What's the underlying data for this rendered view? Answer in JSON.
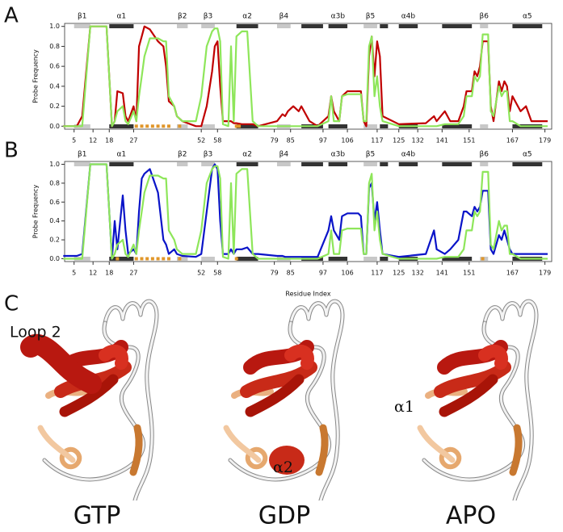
{
  "panel_labels": [
    "A",
    "B",
    "C"
  ],
  "structures": {
    "names": [
      "GTP",
      "GDP",
      "APO"
    ],
    "annotations": [
      "Loop 2",
      "α2",
      "α1"
    ]
  },
  "chart_data": [
    {
      "type": "line",
      "panel": "A",
      "ylabel": "Probe Frequency",
      "x": [
        1,
        6,
        8,
        11,
        17,
        19,
        20,
        21,
        23,
        24,
        25,
        27,
        28,
        29,
        30,
        31,
        33,
        36,
        38,
        39,
        40,
        42,
        43,
        45,
        50,
        52,
        54,
        56,
        57,
        58,
        59,
        60,
        62,
        63,
        64,
        65,
        67,
        69,
        71,
        73,
        80,
        82,
        83,
        84,
        86,
        88,
        89,
        92,
        95,
        99,
        100,
        101,
        103,
        104,
        106,
        110,
        111,
        112,
        113,
        114,
        115,
        116,
        117,
        118,
        119,
        125,
        135,
        138,
        139,
        142,
        144,
        147,
        149,
        150,
        152,
        153,
        154,
        155,
        156,
        158,
        159,
        160,
        162,
        163,
        164,
        165,
        166,
        167,
        170,
        172,
        174,
        180
      ],
      "series": [
        {
          "color": "#c00000",
          "values": [
            0,
            0,
            0.1,
            1.0,
            1.0,
            0,
            0.05,
            0.35,
            0.33,
            0.1,
            0.05,
            0.2,
            0.05,
            0.8,
            0.9,
            1.0,
            0.97,
            0.85,
            0.8,
            0.6,
            0.25,
            0.2,
            0.1,
            0.05,
            0,
            0,
            0.2,
            0.55,
            0.8,
            0.85,
            0.4,
            0.05,
            0.05,
            0.05,
            0.03,
            0.03,
            0.02,
            0.02,
            0.02,
            0,
            0.05,
            0.12,
            0.1,
            0.15,
            0.2,
            0.15,
            0.2,
            0.05,
            0,
            0.1,
            0.3,
            0.15,
            0.05,
            0.3,
            0.35,
            0.35,
            0.35,
            0.05,
            0,
            0.7,
            0.9,
            0.5,
            0.85,
            0.7,
            0.1,
            0.02,
            0.03,
            0.1,
            0.05,
            0.15,
            0.05,
            0.05,
            0.2,
            0.35,
            0.35,
            0.55,
            0.5,
            0.6,
            0.85,
            0.85,
            0.2,
            0.05,
            0.45,
            0.35,
            0.45,
            0.4,
            0.15,
            0.3,
            0.15,
            0.2,
            0.05,
            0.05
          ]
        },
        {
          "color": "#8ee65a",
          "values": [
            0,
            0,
            0,
            1.0,
            1.0,
            0,
            0.05,
            0.15,
            0.2,
            0.05,
            0.02,
            0.15,
            0.05,
            0.3,
            0.5,
            0.7,
            0.88,
            0.88,
            0.85,
            0.85,
            0.3,
            0.2,
            0.1,
            0.05,
            0.05,
            0.3,
            0.8,
            0.95,
            0.98,
            0.98,
            0.85,
            0.02,
            0,
            0.8,
            0.05,
            0.9,
            0.95,
            0.95,
            0.05,
            0,
            0,
            0,
            0,
            0,
            0,
            0,
            0,
            0,
            0,
            0.05,
            0.3,
            0.05,
            0.05,
            0.3,
            0.32,
            0.32,
            0.32,
            0.05,
            0.05,
            0.8,
            0.9,
            0.3,
            0.5,
            0.2,
            0.05,
            0,
            0,
            0,
            0,
            0.02,
            0.02,
            0.02,
            0.1,
            0.3,
            0.3,
            0.5,
            0.45,
            0.5,
            0.92,
            0.92,
            0.15,
            0.1,
            0.4,
            0.3,
            0.35,
            0.35,
            0.05,
            0.05,
            0,
            0,
            0,
            0
          ]
        }
      ],
      "markers": {
        "color": "#e0962a",
        "x": [
          28,
          30,
          32,
          34,
          36,
          38,
          40,
          44,
          65,
          66
        ],
        "values": [
          0,
          0,
          0,
          0,
          0,
          0,
          0,
          0,
          0,
          0
        ]
      },
      "xlim": [
        1.5,
        181.5
      ],
      "xticks": [
        5,
        12,
        18,
        27,
        52,
        58,
        79,
        85,
        97,
        106,
        117,
        125,
        132,
        141,
        151,
        167,
        179
      ],
      "ylim": [
        -0.03,
        1.03
      ],
      "yticks": [
        {
          "value": 0,
          "label": "0.0"
        },
        0.2,
        0.4,
        0.6,
        0.8,
        {
          "value": 1,
          "label": "1.0"
        }
      ],
      "secondary_structure": [
        {
          "label": "β1",
          "start": 5,
          "end": 11,
          "kind": "strand"
        },
        {
          "label": "α1",
          "start": 18,
          "end": 27,
          "kind": "helix"
        },
        {
          "label": "β2",
          "start": 43,
          "end": 47,
          "kind": "strand"
        },
        {
          "label": "β3",
          "start": 52,
          "end": 57,
          "kind": "strand"
        },
        {
          "label": "α2",
          "start": 65,
          "end": 73,
          "kind": "helix"
        },
        {
          "label": "β4",
          "start": 80,
          "end": 85,
          "kind": "strand"
        },
        {
          "label": null,
          "start": 89,
          "end": 97,
          "kind": "helix"
        },
        {
          "label": "α3b",
          "start": 99,
          "end": 106,
          "kind": "helix"
        },
        {
          "label": "β5",
          "start": 112,
          "end": 117,
          "kind": "strand"
        },
        {
          "label": null,
          "start": 118,
          "end": 121,
          "kind": "helix"
        },
        {
          "label": "α4b",
          "start": 125,
          "end": 132,
          "kind": "helix"
        },
        {
          "label": null,
          "start": 141,
          "end": 152,
          "kind": "helix"
        },
        {
          "label": "β6",
          "start": 155,
          "end": 158,
          "kind": "strand"
        },
        {
          "label": "α5",
          "start": 167,
          "end": 178,
          "kind": "helix"
        }
      ]
    },
    {
      "type": "line",
      "panel": "B",
      "ylabel": "Probe Frequency",
      "xlabel": "Residue Index",
      "x": [
        1,
        6,
        8,
        11,
        17,
        19,
        20,
        21,
        23,
        24,
        25,
        27,
        28,
        29,
        30,
        31,
        33,
        36,
        38,
        39,
        40,
        42,
        43,
        45,
        50,
        52,
        54,
        56,
        57,
        58,
        59,
        60,
        62,
        63,
        64,
        65,
        67,
        69,
        71,
        73,
        80,
        82,
        83,
        84,
        86,
        88,
        89,
        92,
        95,
        99,
        100,
        101,
        103,
        104,
        106,
        110,
        111,
        112,
        113,
        114,
        115,
        116,
        117,
        118,
        119,
        125,
        135,
        138,
        139,
        142,
        144,
        147,
        149,
        150,
        152,
        153,
        154,
        155,
        156,
        158,
        159,
        160,
        162,
        163,
        164,
        165,
        166,
        167,
        170,
        172,
        174,
        180
      ],
      "series": [
        {
          "color": "#0a14c8",
          "values": [
            0.03,
            0.03,
            0.05,
            1.0,
            1.0,
            0,
            0.4,
            0.1,
            0.67,
            0.3,
            0.05,
            0.1,
            0.05,
            0.5,
            0.85,
            0.9,
            0.95,
            0.7,
            0.2,
            0.15,
            0.05,
            0.1,
            0.05,
            0.03,
            0.02,
            0.05,
            0.5,
            0.95,
            1.0,
            0.95,
            0.4,
            0.05,
            0.05,
            0.1,
            0.05,
            0.1,
            0.1,
            0.12,
            0.05,
            0.05,
            0.03,
            0.03,
            0.02,
            0.02,
            0.02,
            0.02,
            0.02,
            0.02,
            0.02,
            0.3,
            0.45,
            0.3,
            0.2,
            0.45,
            0.48,
            0.48,
            0.45,
            0.05,
            0.05,
            0.75,
            0.8,
            0.4,
            0.6,
            0.3,
            0.05,
            0.02,
            0.05,
            0.3,
            0.1,
            0.05,
            0.1,
            0.2,
            0.5,
            0.5,
            0.45,
            0.55,
            0.5,
            0.55,
            0.72,
            0.72,
            0.1,
            0.05,
            0.25,
            0.2,
            0.3,
            0.2,
            0.1,
            0.05,
            0.05,
            0.05,
            0.05,
            0.05
          ]
        },
        {
          "color": "#8ee65a",
          "values": [
            0,
            0,
            0,
            1.0,
            1.0,
            0,
            0.05,
            0.15,
            0.2,
            0.05,
            0.02,
            0.15,
            0.05,
            0.3,
            0.5,
            0.7,
            0.88,
            0.88,
            0.85,
            0.85,
            0.3,
            0.2,
            0.1,
            0.05,
            0.05,
            0.3,
            0.8,
            0.95,
            0.98,
            0.98,
            0.85,
            0.02,
            0,
            0.8,
            0.05,
            0.9,
            0.95,
            0.95,
            0.05,
            0,
            0,
            0,
            0,
            0,
            0,
            0,
            0,
            0,
            0,
            0.05,
            0.3,
            0.05,
            0.05,
            0.3,
            0.32,
            0.32,
            0.32,
            0.05,
            0.05,
            0.8,
            0.9,
            0.3,
            0.5,
            0.2,
            0.05,
            0,
            0,
            0,
            0,
            0.02,
            0.02,
            0.02,
            0.1,
            0.3,
            0.3,
            0.5,
            0.45,
            0.5,
            0.92,
            0.92,
            0.15,
            0.1,
            0.4,
            0.3,
            0.35,
            0.35,
            0.05,
            0.05,
            0,
            0,
            0,
            0
          ]
        }
      ],
      "markers": {
        "color": "#e0962a",
        "x": [
          21,
          28,
          30,
          32,
          34,
          36,
          38,
          40,
          44,
          65,
          156
        ],
        "values": [
          0,
          0,
          0,
          0,
          0,
          0,
          0,
          0,
          0,
          0,
          0
        ]
      },
      "xlim": [
        1.5,
        181.5
      ],
      "xticks": [
        5,
        12,
        18,
        27,
        52,
        58,
        79,
        85,
        97,
        106,
        117,
        125,
        132,
        141,
        151,
        167,
        179
      ],
      "ylim": [
        -0.03,
        1.03
      ],
      "yticks": [
        {
          "value": 0,
          "label": "0.0"
        },
        0.2,
        0.4,
        0.6,
        0.8,
        {
          "value": 1,
          "label": "1.0"
        }
      ],
      "secondary_structure": [
        {
          "label": "β1",
          "start": 5,
          "end": 11,
          "kind": "strand"
        },
        {
          "label": "α1",
          "start": 18,
          "end": 27,
          "kind": "helix"
        },
        {
          "label": "β2",
          "start": 43,
          "end": 47,
          "kind": "strand"
        },
        {
          "label": "β3",
          "start": 52,
          "end": 57,
          "kind": "strand"
        },
        {
          "label": "α2",
          "start": 65,
          "end": 73,
          "kind": "helix"
        },
        {
          "label": "β4",
          "start": 80,
          "end": 85,
          "kind": "strand"
        },
        {
          "label": null,
          "start": 89,
          "end": 97,
          "kind": "helix"
        },
        {
          "label": "α3b",
          "start": 99,
          "end": 106,
          "kind": "helix"
        },
        {
          "label": "β5",
          "start": 112,
          "end": 117,
          "kind": "strand"
        },
        {
          "label": null,
          "start": 118,
          "end": 121,
          "kind": "helix"
        },
        {
          "label": "α4b",
          "start": 125,
          "end": 132,
          "kind": "helix"
        },
        {
          "label": null,
          "start": 141,
          "end": 152,
          "kind": "helix"
        },
        {
          "label": "β6",
          "start": 155,
          "end": 158,
          "kind": "strand"
        },
        {
          "label": "α5",
          "start": 167,
          "end": 178,
          "kind": "helix"
        }
      ]
    }
  ]
}
